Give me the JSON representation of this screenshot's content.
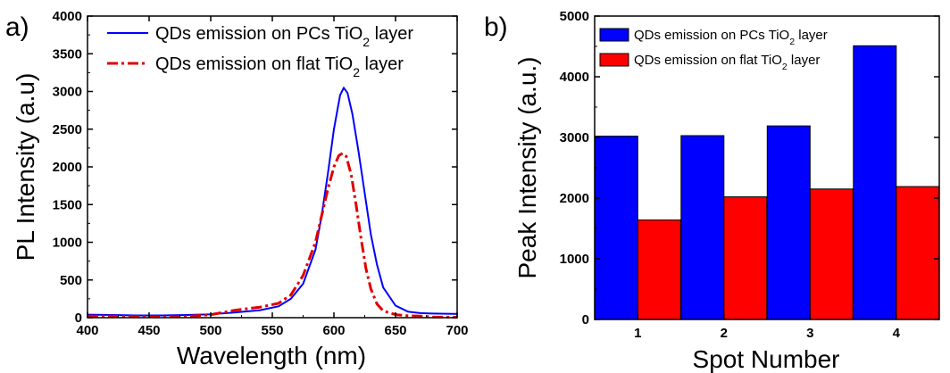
{
  "chart_data": [
    {
      "type": "line",
      "panel_label": "a)",
      "title": "",
      "xlabel": "Wavelength (nm)",
      "ylabel": "PL Intensity (a.u)",
      "xlim": [
        400,
        700
      ],
      "ylim": [
        0,
        4000
      ],
      "xticks": [
        "400",
        "450",
        "500",
        "550",
        "600",
        "650",
        "700"
      ],
      "yticks": [
        "0",
        "500",
        "1000",
        "1500",
        "2000",
        "2500",
        "3000",
        "3500",
        "4000"
      ],
      "grid": false,
      "legend_position": "top-right",
      "colors": {
        "pcs": "#0000ff",
        "flat": "#e00000"
      },
      "series": [
        {
          "name": "QDs emission on PCs TiO",
          "name_sub": "2",
          "name_suffix": " layer",
          "style": "solid",
          "x": [
            400,
            420,
            440,
            460,
            480,
            500,
            520,
            540,
            555,
            565,
            575,
            585,
            590,
            595,
            600,
            605,
            608,
            611,
            615,
            620,
            625,
            630,
            635,
            640,
            650,
            660,
            670,
            680,
            700
          ],
          "y": [
            40,
            35,
            30,
            30,
            35,
            45,
            70,
            100,
            150,
            250,
            450,
            900,
            1350,
            1900,
            2500,
            2950,
            3050,
            2980,
            2700,
            2200,
            1650,
            1100,
            700,
            400,
            160,
            80,
            60,
            55,
            50
          ]
        },
        {
          "name": "QDs emission on flat TiO",
          "name_sub": "2",
          "name_suffix": " layer",
          "style": "dash-dot",
          "x": [
            400,
            420,
            440,
            460,
            480,
            500,
            520,
            540,
            555,
            565,
            575,
            585,
            590,
            595,
            600,
            604,
            607,
            610,
            614,
            618,
            622,
            626,
            630,
            635,
            640,
            650,
            660,
            670,
            680,
            700
          ],
          "y": [
            20,
            20,
            15,
            10,
            15,
            40,
            100,
            140,
            190,
            300,
            560,
            1000,
            1350,
            1700,
            2000,
            2150,
            2180,
            2140,
            1900,
            1500,
            1050,
            650,
            380,
            180,
            90,
            40,
            25,
            20,
            10,
            5
          ]
        }
      ]
    },
    {
      "type": "bar",
      "panel_label": "b)",
      "title": "",
      "xlabel": "Spot Number",
      "ylabel": "Peak Intensity (a.u.)",
      "categories": [
        "1",
        "2",
        "3",
        "4"
      ],
      "ylim": [
        0,
        5000
      ],
      "yticks": [
        "0",
        "1000",
        "2000",
        "3000",
        "4000",
        "5000"
      ],
      "grid": false,
      "legend_position": "top-left",
      "colors": {
        "pcs": "#0000ff",
        "flat": "#ff0000"
      },
      "series": [
        {
          "name": "QDs emission on PCs TiO",
          "name_sub": "2",
          "name_suffix": " layer",
          "values": [
            3020,
            3030,
            3190,
            4510
          ]
        },
        {
          "name": "QDs emission on flat TiO",
          "name_sub": "2",
          "name_suffix": " layer",
          "values": [
            1640,
            2020,
            2150,
            2190
          ]
        }
      ]
    }
  ]
}
